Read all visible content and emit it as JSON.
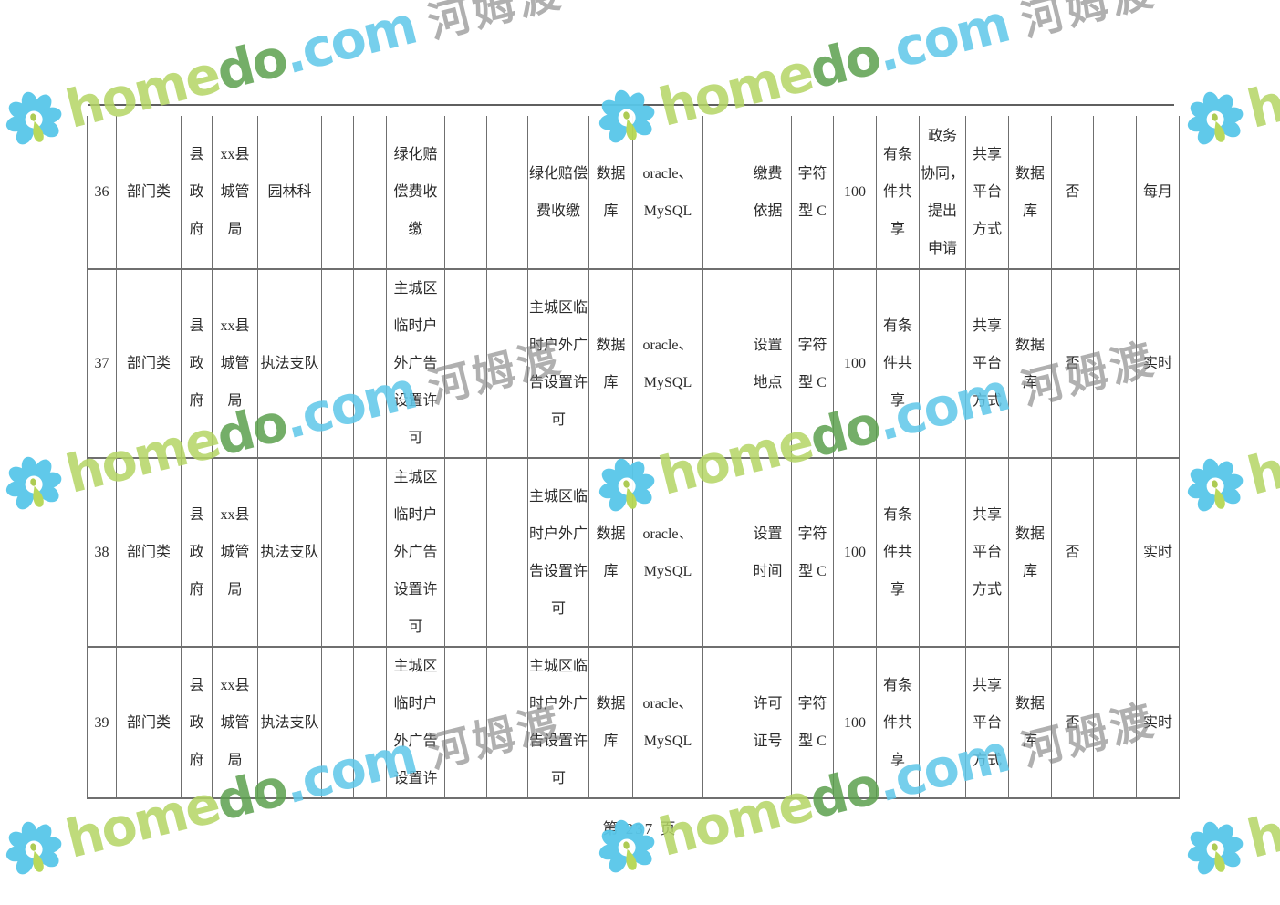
{
  "document": {
    "footer_page_label": "第  237  页"
  },
  "watermark": {
    "brand_home": "home",
    "brand_do": "do",
    "brand_com": ".com",
    "brand_cn": "河姆渡",
    "colors": {
      "petal_blue": "#58c7e9",
      "leaf_green": "#b6d854",
      "text_light_green": "#b4d564",
      "text_dark_green": "#5ca04e",
      "text_blue": "#5ec7e9",
      "text_gray": "#8f8f8f"
    }
  },
  "table": {
    "rows": [
      [
        "36",
        "部门类",
        "县\n政\n府",
        "xx县\n城管\n局",
        "园林科",
        "",
        "",
        "绿化赔\n偿费收\n缴",
        "",
        "",
        "绿化赔偿\n费收缴",
        "数据\n库",
        "oracle、\nMySQL",
        "",
        "缴费\n依据",
        "字符\n型 C",
        "100",
        "有条\n件共\n享",
        "政务\n协同，\n提出\n申请",
        "共享\n平台\n方式",
        "数据\n库",
        "否",
        "",
        "每月"
      ],
      [
        "37",
        "部门类",
        "县\n政\n府",
        "xx县\n城管\n局",
        "执法支队",
        "",
        "",
        "主城区\n临时户\n外广告\n设置许\n可",
        "",
        "",
        "主城区临\n时户外广\n告设置许\n可",
        "数据\n库",
        "oracle、\nMySQL",
        "",
        "设置\n地点",
        "字符\n型 C",
        "100",
        "有条\n件共\n享",
        "",
        "共享\n平台\n方式",
        "数据\n库",
        "否",
        "",
        "实时"
      ],
      [
        "38",
        "部门类",
        "县\n政\n府",
        "xx县\n城管\n局",
        "执法支队",
        "",
        "",
        "主城区\n临时户\n外广告\n设置许\n可",
        "",
        "",
        "主城区临\n时户外广\n告设置许\n可",
        "数据\n库",
        "oracle、\nMySQL",
        "",
        "设置\n时间",
        "字符\n型 C",
        "100",
        "有条\n件共\n享",
        "",
        "共享\n平台\n方式",
        "数据\n库",
        "否",
        "",
        "实时"
      ],
      [
        "39",
        "部门类",
        "县\n政\n府",
        "xx县\n城管\n局",
        "执法支队",
        "",
        "",
        "主城区\n临时户\n外广告\n设置许",
        "",
        "",
        "主城区临\n时户外广\n告设置许\n可",
        "数据\n库",
        "oracle、\nMySQL",
        "",
        "许可\n证号",
        "字符\n型 C",
        "100",
        "有条\n件共\n享",
        "",
        "共享\n平台\n方式",
        "数据\n库",
        "否",
        "",
        "实时"
      ]
    ]
  }
}
